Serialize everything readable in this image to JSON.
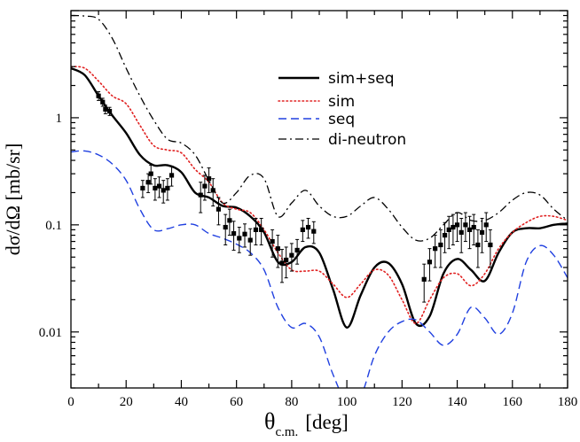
{
  "chart_data": {
    "type": "line",
    "xlabel_main": "θ",
    "xlabel_sub": "c.m.",
    "xlabel_unit": "[deg]",
    "ylabel": "dσ/dΩ [mb/sr]",
    "xlim": [
      0,
      180
    ],
    "ylim": [
      0.003,
      10
    ],
    "yscale": "log",
    "legend_position": "top-right",
    "xticks": [
      0,
      20,
      40,
      60,
      80,
      100,
      120,
      140,
      160,
      180
    ],
    "xtick_labels": [
      "0",
      "20",
      "40",
      "60",
      "80",
      "100",
      "120",
      "140",
      "160",
      "180"
    ],
    "yticks": [
      0.01,
      0.1,
      1
    ],
    "ytick_labels": [
      "0.01",
      "0.1",
      "1"
    ],
    "series": [
      {
        "name": "sim+seq",
        "color": "#000000",
        "dash": "solid",
        "points": [
          [
            0,
            2.9
          ],
          [
            5,
            2.5
          ],
          [
            10,
            1.6
          ],
          [
            15,
            1.05
          ],
          [
            20,
            0.72
          ],
          [
            25,
            0.45
          ],
          [
            30,
            0.36
          ],
          [
            35,
            0.36
          ],
          [
            40,
            0.31
          ],
          [
            45,
            0.2
          ],
          [
            50,
            0.18
          ],
          [
            55,
            0.15
          ],
          [
            60,
            0.145
          ],
          [
            65,
            0.12
          ],
          [
            70,
            0.085
          ],
          [
            75,
            0.045
          ],
          [
            80,
            0.045
          ],
          [
            85,
            0.062
          ],
          [
            90,
            0.055
          ],
          [
            95,
            0.025
          ],
          [
            100,
            0.011
          ],
          [
            105,
            0.022
          ],
          [
            110,
            0.04
          ],
          [
            115,
            0.044
          ],
          [
            120,
            0.028
          ],
          [
            125,
            0.012
          ],
          [
            130,
            0.014
          ],
          [
            135,
            0.035
          ],
          [
            140,
            0.048
          ],
          [
            145,
            0.038
          ],
          [
            150,
            0.03
          ],
          [
            155,
            0.055
          ],
          [
            160,
            0.085
          ],
          [
            165,
            0.093
          ],
          [
            170,
            0.093
          ],
          [
            175,
            0.1
          ],
          [
            180,
            0.103
          ]
        ]
      },
      {
        "name": "sim",
        "color": "#e02020",
        "dash": "dotted",
        "points": [
          [
            0,
            3.0
          ],
          [
            5,
            2.9
          ],
          [
            10,
            2.2
          ],
          [
            15,
            1.6
          ],
          [
            20,
            1.35
          ],
          [
            25,
            0.85
          ],
          [
            30,
            0.55
          ],
          [
            35,
            0.5
          ],
          [
            40,
            0.47
          ],
          [
            45,
            0.33
          ],
          [
            50,
            0.25
          ],
          [
            55,
            0.16
          ],
          [
            60,
            0.14
          ],
          [
            65,
            0.13
          ],
          [
            70,
            0.09
          ],
          [
            75,
            0.055
          ],
          [
            80,
            0.038
          ],
          [
            85,
            0.037
          ],
          [
            90,
            0.037
          ],
          [
            95,
            0.028
          ],
          [
            100,
            0.021
          ],
          [
            105,
            0.028
          ],
          [
            110,
            0.038
          ],
          [
            115,
            0.034
          ],
          [
            120,
            0.02
          ],
          [
            125,
            0.012
          ],
          [
            130,
            0.02
          ],
          [
            135,
            0.032
          ],
          [
            140,
            0.035
          ],
          [
            145,
            0.027
          ],
          [
            150,
            0.035
          ],
          [
            155,
            0.06
          ],
          [
            160,
            0.085
          ],
          [
            165,
            0.105
          ],
          [
            170,
            0.12
          ],
          [
            175,
            0.12
          ],
          [
            180,
            0.11
          ]
        ]
      },
      {
        "name": "seq",
        "color": "#2040e0",
        "dash": "dashed",
        "points": [
          [
            0,
            0.48
          ],
          [
            5,
            0.49
          ],
          [
            10,
            0.45
          ],
          [
            15,
            0.37
          ],
          [
            20,
            0.26
          ],
          [
            25,
            0.14
          ],
          [
            30,
            0.09
          ],
          [
            35,
            0.092
          ],
          [
            40,
            0.1
          ],
          [
            45,
            0.1
          ],
          [
            50,
            0.083
          ],
          [
            55,
            0.075
          ],
          [
            60,
            0.066
          ],
          [
            65,
            0.055
          ],
          [
            70,
            0.038
          ],
          [
            75,
            0.017
          ],
          [
            80,
            0.011
          ],
          [
            85,
            0.012
          ],
          [
            90,
            0.009
          ],
          [
            95,
            0.004
          ],
          [
            100,
            0.0022
          ],
          [
            105,
            0.0025
          ],
          [
            110,
            0.006
          ],
          [
            115,
            0.01
          ],
          [
            120,
            0.0125
          ],
          [
            125,
            0.013
          ],
          [
            130,
            0.01
          ],
          [
            135,
            0.0075
          ],
          [
            140,
            0.0095
          ],
          [
            145,
            0.017
          ],
          [
            150,
            0.0135
          ],
          [
            155,
            0.0095
          ],
          [
            160,
            0.015
          ],
          [
            165,
            0.045
          ],
          [
            170,
            0.064
          ],
          [
            175,
            0.052
          ],
          [
            180,
            0.032
          ]
        ]
      },
      {
        "name": "di-neutron",
        "color": "#000000",
        "dash": "dashdot",
        "points": [
          [
            0,
            9.0
          ],
          [
            5,
            8.9
          ],
          [
            10,
            8.3
          ],
          [
            15,
            5.5
          ],
          [
            20,
            2.9
          ],
          [
            25,
            1.6
          ],
          [
            30,
            0.95
          ],
          [
            35,
            0.63
          ],
          [
            40,
            0.58
          ],
          [
            45,
            0.45
          ],
          [
            50,
            0.26
          ],
          [
            55,
            0.16
          ],
          [
            60,
            0.2
          ],
          [
            65,
            0.29
          ],
          [
            70,
            0.27
          ],
          [
            75,
            0.12
          ],
          [
            80,
            0.16
          ],
          [
            85,
            0.21
          ],
          [
            90,
            0.15
          ],
          [
            95,
            0.12
          ],
          [
            100,
            0.12
          ],
          [
            105,
            0.15
          ],
          [
            110,
            0.18
          ],
          [
            115,
            0.14
          ],
          [
            120,
            0.095
          ],
          [
            125,
            0.072
          ],
          [
            130,
            0.075
          ],
          [
            135,
            0.1
          ],
          [
            140,
            0.13
          ],
          [
            145,
            0.11
          ],
          [
            150,
            0.11
          ],
          [
            155,
            0.13
          ],
          [
            160,
            0.17
          ],
          [
            165,
            0.2
          ],
          [
            170,
            0.19
          ],
          [
            175,
            0.14
          ],
          [
            180,
            0.11
          ]
        ]
      }
    ],
    "data_points": [
      {
        "x": 10,
        "y": 1.6,
        "err": 0.15
      },
      {
        "x": 11.5,
        "y": 1.4,
        "err": 0.12
      },
      {
        "x": 12.5,
        "y": 1.2,
        "err": 0.11
      },
      {
        "x": 14,
        "y": 1.15,
        "err": 0.1
      },
      {
        "x": 26,
        "y": 0.22,
        "err": 0.04
      },
      {
        "x": 28,
        "y": 0.25,
        "err": 0.05
      },
      {
        "x": 29,
        "y": 0.3,
        "err": 0.06
      },
      {
        "x": 30.5,
        "y": 0.22,
        "err": 0.05
      },
      {
        "x": 32,
        "y": 0.23,
        "err": 0.05
      },
      {
        "x": 33.5,
        "y": 0.21,
        "err": 0.05
      },
      {
        "x": 35,
        "y": 0.22,
        "err": 0.05
      },
      {
        "x": 36.5,
        "y": 0.29,
        "err": 0.06
      },
      {
        "x": 47,
        "y": 0.19,
        "err": 0.06
      },
      {
        "x": 48.5,
        "y": 0.23,
        "err": 0.06
      },
      {
        "x": 50,
        "y": 0.27,
        "err": 0.07
      },
      {
        "x": 51.5,
        "y": 0.21,
        "err": 0.06
      },
      {
        "x": 53.5,
        "y": 0.14,
        "err": 0.04
      },
      {
        "x": 56,
        "y": 0.095,
        "err": 0.03
      },
      {
        "x": 57.5,
        "y": 0.11,
        "err": 0.03
      },
      {
        "x": 59,
        "y": 0.083,
        "err": 0.025
      },
      {
        "x": 61,
        "y": 0.075,
        "err": 0.02
      },
      {
        "x": 63,
        "y": 0.082,
        "err": 0.02
      },
      {
        "x": 65,
        "y": 0.072,
        "err": 0.02
      },
      {
        "x": 67,
        "y": 0.09,
        "err": 0.025
      },
      {
        "x": 69,
        "y": 0.09,
        "err": 0.025
      },
      {
        "x": 73,
        "y": 0.07,
        "err": 0.02
      },
      {
        "x": 75,
        "y": 0.06,
        "err": 0.02
      },
      {
        "x": 76.5,
        "y": 0.044,
        "err": 0.015
      },
      {
        "x": 78,
        "y": 0.047,
        "err": 0.015
      },
      {
        "x": 80,
        "y": 0.052,
        "err": 0.015
      },
      {
        "x": 82,
        "y": 0.058,
        "err": 0.015
      },
      {
        "x": 84,
        "y": 0.09,
        "err": 0.02
      },
      {
        "x": 86,
        "y": 0.095,
        "err": 0.02
      },
      {
        "x": 88,
        "y": 0.087,
        "err": 0.02
      },
      {
        "x": 128,
        "y": 0.031,
        "err": 0.012
      },
      {
        "x": 130,
        "y": 0.045,
        "err": 0.015
      },
      {
        "x": 132,
        "y": 0.06,
        "err": 0.02
      },
      {
        "x": 134,
        "y": 0.065,
        "err": 0.025
      },
      {
        "x": 135.5,
        "y": 0.08,
        "err": 0.025
      },
      {
        "x": 137,
        "y": 0.09,
        "err": 0.03
      },
      {
        "x": 138.5,
        "y": 0.095,
        "err": 0.03
      },
      {
        "x": 140,
        "y": 0.1,
        "err": 0.03
      },
      {
        "x": 141.5,
        "y": 0.085,
        "err": 0.03
      },
      {
        "x": 143,
        "y": 0.1,
        "err": 0.03
      },
      {
        "x": 144.5,
        "y": 0.09,
        "err": 0.03
      },
      {
        "x": 146,
        "y": 0.095,
        "err": 0.03
      },
      {
        "x": 147.5,
        "y": 0.065,
        "err": 0.025
      },
      {
        "x": 149,
        "y": 0.085,
        "err": 0.03
      },
      {
        "x": 150.5,
        "y": 0.1,
        "err": 0.03
      },
      {
        "x": 152,
        "y": 0.065,
        "err": 0.025
      }
    ]
  }
}
